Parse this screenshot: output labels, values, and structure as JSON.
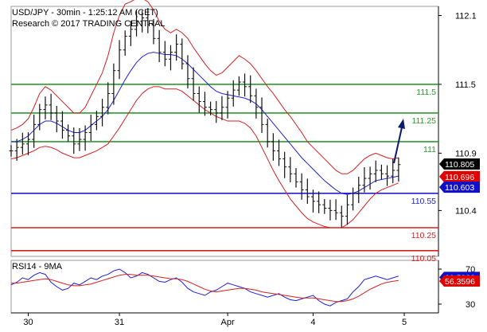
{
  "header": {
    "title": "USD/JPY - 30min - 1:25:12 AM (CET)",
    "copyright": "Research © 2017 TRADING CENTRAL"
  },
  "chart_data": [
    {
      "type": "line",
      "subtype": "ohlc-bars-with-bollinger-bands",
      "ylim": [
        110.0,
        112.18
      ],
      "y_ticks": [
        {
          "value": 112.1,
          "label": "112.1"
        },
        {
          "value": 111.5,
          "label": "111.5"
        },
        {
          "value": 110.9,
          "label": "110.9"
        },
        {
          "value": 110.4,
          "label": "110.4"
        }
      ],
      "x_ticks": [
        {
          "value": 3,
          "label": "30"
        },
        {
          "value": 19,
          "label": "31"
        },
        {
          "value": 38,
          "label": "Apr"
        },
        {
          "value": 53,
          "label": "4"
        },
        {
          "value": 69,
          "label": "5"
        }
      ],
      "x_range": [
        0,
        75
      ],
      "levels": [
        {
          "value": 111.5,
          "label": "111.5",
          "color": "#2e9a2e"
        },
        {
          "value": 111.25,
          "label": "111.25",
          "color": "#2e9a2e"
        },
        {
          "value": 111.0,
          "label": "111",
          "color": "#2e9a2e"
        },
        {
          "value": 110.55,
          "label": "110.55",
          "color": "#1f1fd6"
        },
        {
          "value": 110.25,
          "label": "110.25",
          "color": "#d62020"
        },
        {
          "value": 110.05,
          "label": "110.05",
          "color": "#d62020"
        }
      ],
      "price_tags": [
        {
          "value": 110.805,
          "label": "110.805",
          "color": "#000000"
        },
        {
          "value": 110.696,
          "label": "110.696",
          "color": "#e00000"
        },
        {
          "value": 110.603,
          "label": "110.603",
          "color": "#1010c8"
        }
      ],
      "close": [
        110.92,
        110.95,
        110.98,
        111.02,
        111.15,
        111.28,
        111.32,
        111.25,
        111.18,
        111.1,
        111.05,
        110.98,
        111.02,
        111.08,
        111.15,
        111.22,
        111.3,
        111.42,
        111.62,
        111.8,
        111.92,
        111.98,
        112.05,
        112.08,
        112.02,
        111.9,
        111.78,
        111.72,
        111.78,
        111.85,
        111.68,
        111.55,
        111.42,
        111.35,
        111.3,
        111.28,
        111.25,
        111.3,
        111.38,
        111.45,
        111.52,
        111.48,
        111.4,
        111.3,
        111.15,
        111.0,
        110.92,
        110.85,
        110.78,
        110.72,
        110.65,
        110.58,
        110.52,
        110.48,
        110.45,
        110.42,
        110.4,
        110.38,
        110.35,
        110.45,
        110.55,
        110.62,
        110.68,
        110.72,
        110.75,
        110.72,
        110.7,
        110.75,
        110.8
      ],
      "series": [
        {
          "values": [
            111.0,
            111.0,
            111.02,
            111.05,
            111.1,
            111.15,
            111.18,
            111.18,
            111.16,
            111.13,
            111.1,
            111.08,
            111.08,
            111.1,
            111.14,
            111.18,
            111.22,
            111.28,
            111.36,
            111.45,
            111.54,
            111.62,
            111.69,
            111.74,
            111.77,
            111.78,
            111.77,
            111.76,
            111.76,
            111.75,
            111.72,
            111.68,
            111.63,
            111.58,
            111.53,
            111.48,
            111.44,
            111.42,
            111.41,
            111.4,
            111.39,
            111.38,
            111.36,
            111.33,
            111.28,
            111.22,
            111.16,
            111.1,
            111.04,
            110.98,
            110.92,
            110.86,
            110.81,
            110.76,
            110.71,
            110.66,
            110.62,
            110.58,
            110.55,
            110.54,
            110.55,
            110.57,
            110.6,
            110.63,
            110.66,
            110.67,
            110.68,
            110.69,
            110.7
          ],
          "color": "#1f1fd6"
        },
        {
          "values": [
            111.1,
            111.12,
            111.15,
            111.2,
            111.3,
            111.42,
            111.48,
            111.45,
            111.4,
            111.35,
            111.3,
            111.25,
            111.25,
            111.3,
            111.4,
            111.5,
            111.6,
            111.75,
            111.95,
            112.1,
            112.2,
            112.22,
            112.25,
            112.25,
            112.22,
            112.15,
            112.05,
            111.98,
            111.95,
            111.98,
            111.95,
            111.9,
            111.82,
            111.75,
            111.68,
            111.62,
            111.58,
            111.6,
            111.65,
            111.7,
            111.75,
            111.72,
            111.68,
            111.62,
            111.55,
            111.48,
            111.42,
            111.35,
            111.28,
            111.22,
            111.15,
            111.08,
            111.0,
            110.95,
            110.9,
            110.85,
            110.8,
            110.75,
            110.72,
            110.72,
            110.75,
            110.8,
            110.85,
            110.88,
            110.9,
            110.88,
            110.86,
            110.85,
            110.86
          ],
          "color": "#d62020"
        },
        {
          "values": [
            110.85,
            110.86,
            110.88,
            110.9,
            110.92,
            110.95,
            110.96,
            110.95,
            110.93,
            110.9,
            110.88,
            110.86,
            110.86,
            110.88,
            110.9,
            110.92,
            110.95,
            110.98,
            111.05,
            111.12,
            111.2,
            111.28,
            111.36,
            111.42,
            111.46,
            111.48,
            111.48,
            111.46,
            111.46,
            111.46,
            111.44,
            111.4,
            111.36,
            111.32,
            111.28,
            111.25,
            111.22,
            111.2,
            111.18,
            111.18,
            111.18,
            111.16,
            111.12,
            111.05,
            110.95,
            110.85,
            110.75,
            110.66,
            110.58,
            110.5,
            110.44,
            110.38,
            110.33,
            110.3,
            110.28,
            110.26,
            110.25,
            110.25,
            110.25,
            110.28,
            110.32,
            110.38,
            110.44,
            110.5,
            110.55,
            110.58,
            110.6,
            110.62,
            110.64
          ],
          "color": "#d62020"
        }
      ]
    },
    {
      "type": "line",
      "title": "RSI14 - 9MA",
      "ylim": [
        20,
        80
      ],
      "y_ticks": [
        {
          "value": 70,
          "label": "70"
        },
        {
          "value": 30,
          "label": "30"
        }
      ],
      "price_tags": [
        {
          "value": 60.5933,
          "label": "60.5933",
          "color": "#1010c8"
        },
        {
          "value": 56.3596,
          "label": "56.3596",
          "color": "#e00000"
        }
      ],
      "series": [
        {
          "values": [
            52,
            55,
            60,
            58,
            63,
            66,
            64,
            55,
            50,
            46,
            48,
            54,
            52,
            56,
            60,
            58,
            62,
            64,
            68,
            70,
            66,
            60,
            62,
            66,
            64,
            60,
            56,
            55,
            58,
            60,
            55,
            48,
            44,
            42,
            40,
            44,
            46,
            50,
            54,
            52,
            50,
            48,
            44,
            42,
            40,
            38,
            40,
            42,
            38,
            35,
            34,
            36,
            38,
            40,
            34,
            30,
            28,
            32,
            34,
            36,
            44,
            50,
            58,
            60,
            62,
            60,
            58,
            60,
            62
          ],
          "color": "#1f1fd6"
        },
        {
          "values": [
            54,
            54,
            55,
            56,
            57,
            58,
            59,
            58,
            56,
            54,
            52,
            51,
            51,
            52,
            53,
            55,
            57,
            59,
            61,
            63,
            64,
            64,
            63,
            63,
            63,
            62,
            61,
            60,
            59,
            59,
            58,
            56,
            53,
            50,
            47,
            45,
            44,
            45,
            46,
            47,
            48,
            48,
            47,
            46,
            44,
            43,
            42,
            41,
            40,
            39,
            38,
            37,
            37,
            37,
            36,
            35,
            34,
            33,
            33,
            34,
            36,
            39,
            43,
            47,
            50,
            53,
            55,
            56,
            57
          ],
          "color": "#d62020"
        }
      ]
    }
  ],
  "colors": {
    "axis": "#000000",
    "frame": "#999999"
  }
}
